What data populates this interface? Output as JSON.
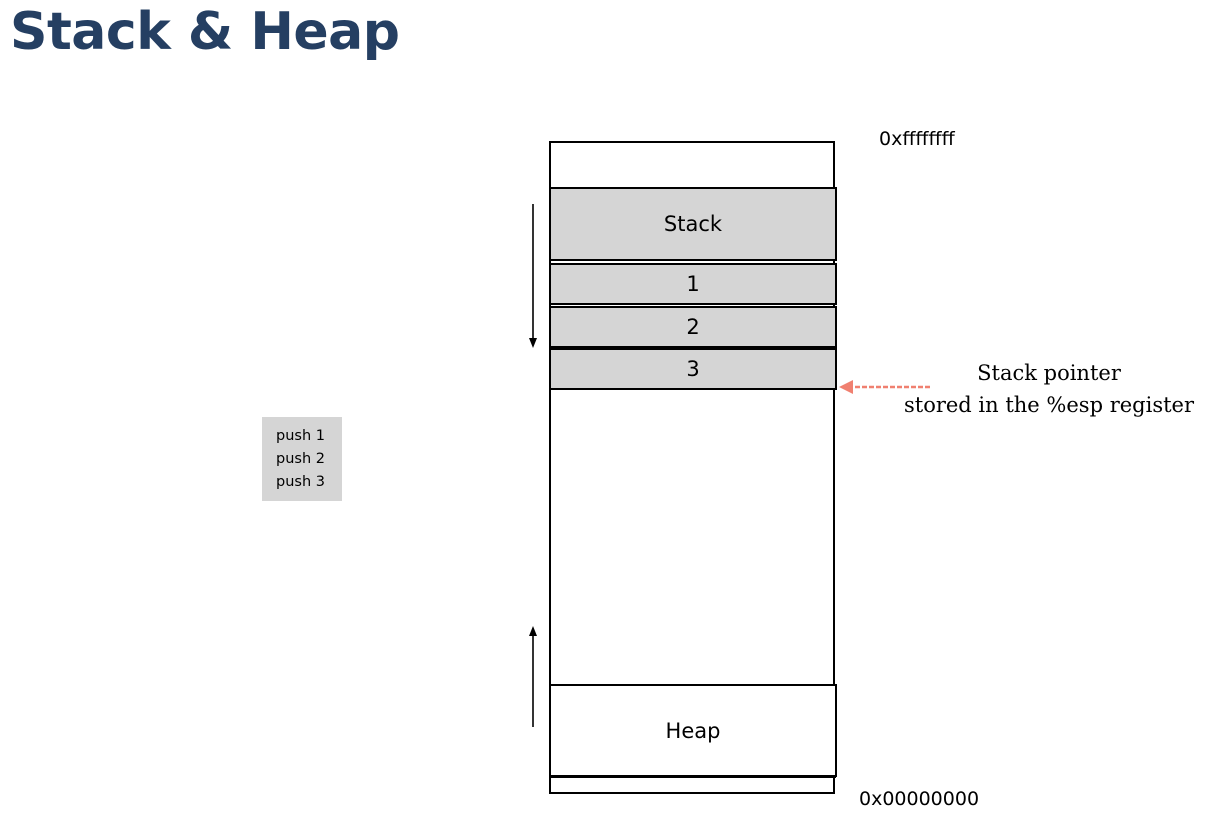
{
  "title": "Stack & Heap",
  "addresses": {
    "top": "0xffffffff",
    "bottom": "0x00000000"
  },
  "memory": {
    "stack_label": "Stack",
    "pushed_values": [
      "1",
      "2",
      "3"
    ],
    "heap_label": "Heap"
  },
  "code": {
    "lines": [
      "push 1",
      "push 2",
      "push 3"
    ]
  },
  "stack_pointer_note": {
    "line1": "Stack pointer",
    "line2": "stored in the %esp register"
  },
  "colors": {
    "title": "#253f62",
    "block_fill": "#d5d5d5",
    "pointer_arrow": "#f08070"
  }
}
